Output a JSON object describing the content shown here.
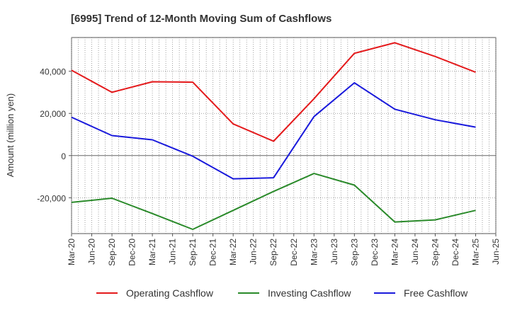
{
  "chart_data": {
    "type": "line",
    "title": "[6995]  Trend of 12-Month Moving Sum of Cashflows",
    "ylabel": "Amount (million yen)",
    "xlabel": "",
    "x": [
      "Mar-20",
      "Jun-20",
      "Sep-20",
      "Dec-20",
      "Mar-21",
      "Jun-21",
      "Sep-21",
      "Dec-21",
      "Mar-22",
      "Jun-22",
      "Sep-22",
      "Dec-22",
      "Mar-23",
      "Jun-23",
      "Sep-23",
      "Dec-23",
      "Mar-24",
      "Jun-24",
      "Sep-24",
      "Dec-24",
      "Mar-25",
      "Jun-25"
    ],
    "ylim": [
      -37000,
      56000
    ],
    "yticks": [
      -20000,
      0,
      20000,
      40000
    ],
    "ytick_labels": [
      "-20,000",
      "0",
      "20,000",
      "40,000"
    ],
    "grid": true,
    "legend_position": "bottom",
    "series": [
      {
        "name": "Operating Cashflow",
        "color": "#e41a1c",
        "x": [
          "Mar-20",
          "Sep-20",
          "Mar-21",
          "Sep-21",
          "Mar-22",
          "Sep-22",
          "Mar-23",
          "Sep-23",
          "Mar-24",
          "Sep-24",
          "Mar-25"
        ],
        "values": [
          40500,
          30000,
          35000,
          34800,
          15000,
          6800,
          27000,
          48500,
          53500,
          47000,
          39500
        ]
      },
      {
        "name": "Investing Cashflow",
        "color": "#2a8a2a",
        "x": [
          "Mar-20",
          "Sep-20",
          "Mar-21",
          "Sep-21",
          "Mar-22",
          "Sep-22",
          "Mar-23",
          "Sep-23",
          "Mar-24",
          "Sep-24",
          "Mar-25"
        ],
        "values": [
          -22200,
          -20200,
          -27500,
          -35000,
          -26000,
          -17000,
          -8500,
          -14000,
          -31500,
          -30500,
          -26000
        ]
      },
      {
        "name": "Free Cashflow",
        "color": "#1a1adc",
        "x": [
          "Mar-20",
          "Sep-20",
          "Mar-21",
          "Sep-21",
          "Mar-22",
          "Sep-22",
          "Mar-23",
          "Sep-23",
          "Mar-24",
          "Sep-24",
          "Mar-25"
        ],
        "values": [
          18200,
          9500,
          7500,
          -300,
          -11000,
          -10500,
          18500,
          34500,
          22000,
          17000,
          13500
        ]
      }
    ]
  }
}
